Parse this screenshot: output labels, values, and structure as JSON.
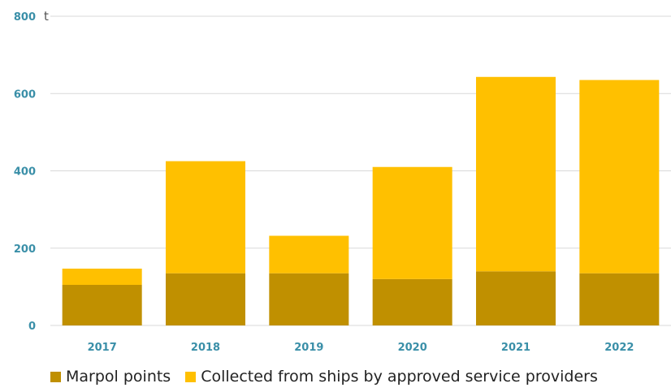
{
  "chart_data": {
    "type": "bar",
    "stacked": true,
    "unit_label": "t",
    "categories": [
      "2017",
      "2018",
      "2019",
      "2020",
      "2021",
      "2022"
    ],
    "series": [
      {
        "name": "Marpol points",
        "color": "#c09000",
        "values": [
          105,
          135,
          135,
          120,
          140,
          135
        ]
      },
      {
        "name": "Collected from ships by approved service providers",
        "color": "#ffc000",
        "values": [
          42,
          290,
          97,
          290,
          503,
          500
        ]
      }
    ],
    "ylim": [
      0,
      800
    ],
    "yticks": [
      "0",
      "200",
      "400",
      "600",
      "800"
    ],
    "grid": true,
    "legend_position": "bottom"
  }
}
